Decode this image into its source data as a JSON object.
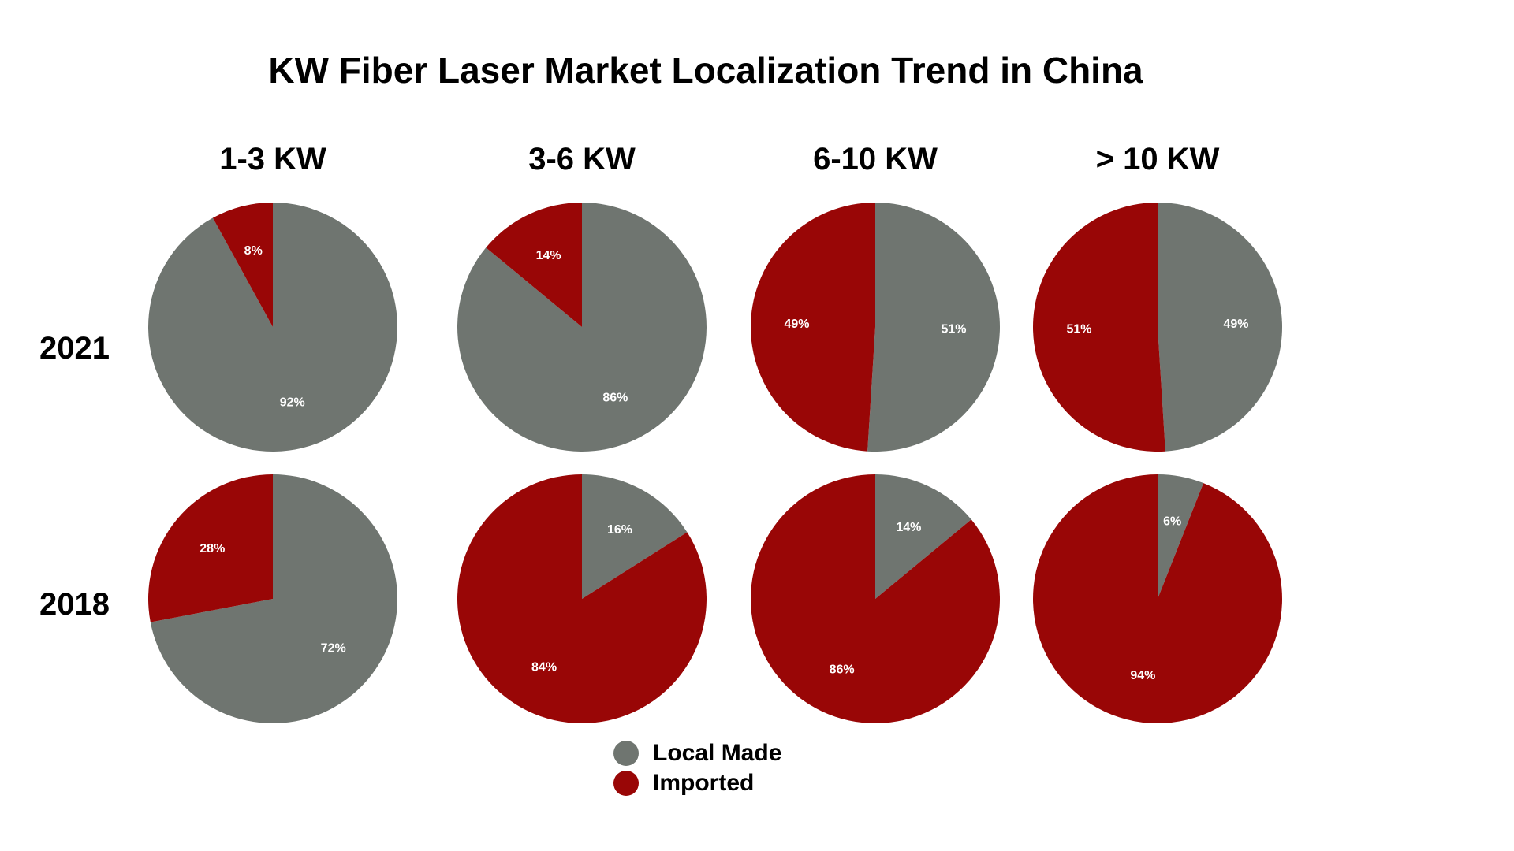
{
  "chart_data": {
    "type": "pie",
    "title": "KW Fiber Laser Market Localization Trend in China",
    "columns": [
      "1-3 KW",
      "3-6 KW",
      "6-10 KW",
      "> 10 KW"
    ],
    "rows": [
      "2021",
      "2018"
    ],
    "series_names": [
      "Local Made",
      "Imported"
    ],
    "colors": {
      "Local Made": "#6f7570",
      "Imported": "#990606"
    },
    "legend_position": "bottom-center",
    "pies": [
      {
        "row": "2021",
        "column": "1-3 KW",
        "local": 92,
        "imported": 8,
        "local_label": "92%",
        "imported_label": "8%"
      },
      {
        "row": "2021",
        "column": "3-6 KW",
        "local": 86,
        "imported": 14,
        "local_label": "86%",
        "imported_label": "14%"
      },
      {
        "row": "2021",
        "column": "6-10 KW",
        "local": 51,
        "imported": 49,
        "local_label": "51%",
        "imported_label": "49%"
      },
      {
        "row": "2021",
        "column": "> 10 KW",
        "local": 49,
        "imported": 51,
        "local_label": "49%",
        "imported_label": "51%"
      },
      {
        "row": "2018",
        "column": "1-3 KW",
        "local": 72,
        "imported": 28,
        "local_label": "72%",
        "imported_label": "28%"
      },
      {
        "row": "2018",
        "column": "3-6 KW",
        "local": 16,
        "imported": 84,
        "local_label": "16%",
        "imported_label": "84%"
      },
      {
        "row": "2018",
        "column": "6-10 KW",
        "local": 14,
        "imported": 86,
        "local_label": "14%",
        "imported_label": "86%"
      },
      {
        "row": "2018",
        "column": "> 10 KW",
        "local": 6,
        "imported": 94,
        "local_label": "6%",
        "imported_label": "94%"
      }
    ]
  }
}
